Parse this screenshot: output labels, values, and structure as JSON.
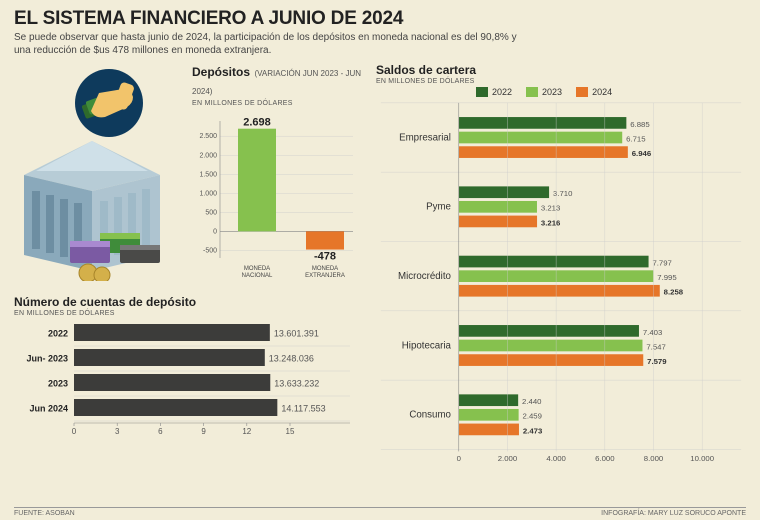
{
  "title": "EL SISTEMA FINANCIERO A JUNIO DE 2024",
  "subtitle": "Se puede observar que hasta junio de 2024, la participación de los depósitos en moneda nacional es del 90,8% y una reducción de $us 478 millones en moneda extranjera.",
  "source": "FUENTE: ASOBAN",
  "credit": "INFOGRAFÍA: MARY LUZ SORUCO APONTE",
  "depositos": {
    "title": "Depósitos",
    "title_sub": "(VARIACIÓN JUN 2023 - JUN 2024)",
    "unit": "EN MILLONES DE DÓLARES",
    "y_ticks": [
      -500,
      0,
      500,
      1000,
      1500,
      2000,
      2500
    ],
    "y_min": -700,
    "y_max": 2900,
    "bars": [
      {
        "label_l1": "MONEDA",
        "label_l2": "NACIONAL",
        "value": 2698,
        "display": "2.698",
        "color": "#86c14e"
      },
      {
        "label_l1": "MONEDA",
        "label_l2": "EXTRANJERA",
        "value": -478,
        "display": "-478",
        "color": "#e67629"
      }
    ]
  },
  "cuentas": {
    "title": "Número de cuentas de depósito",
    "unit": "EN MILLONES DE DÓLARES",
    "x_max": 15,
    "x_ticks": [
      0,
      3,
      6,
      9,
      12,
      15
    ],
    "bar_color": "#3c3c3a",
    "rows": [
      {
        "label": "2022",
        "value": 13.6,
        "display": "13.601.391"
      },
      {
        "label": "Jun- 2023",
        "value": 13.25,
        "display": "13.248.036"
      },
      {
        "label": "2023",
        "value": 13.63,
        "display": "13.633.232"
      },
      {
        "label": "Jun 2024",
        "value": 14.12,
        "display": "14.117.553"
      }
    ]
  },
  "saldos": {
    "title": "Saldos de cartera",
    "unit": "EN MILLONES DE DÓLARES",
    "x_max": 10000,
    "x_ticks": [
      0,
      2000,
      4000,
      6000,
      8000,
      10000
    ],
    "x_tick_labels": [
      "0",
      "2.000",
      "4.000",
      "6.000",
      "8.000",
      "10.000"
    ],
    "years": [
      {
        "label": "2022",
        "color": "#2f6a2c"
      },
      {
        "label": "2023",
        "color": "#86c14e"
      },
      {
        "label": "2024",
        "color": "#e67629"
      }
    ],
    "categories": [
      {
        "label": "Empresarial",
        "values": [
          6885,
          6715,
          6946
        ],
        "displays": [
          "6.885",
          "6.715",
          "6.946"
        ]
      },
      {
        "label": "Pyme",
        "values": [
          3710,
          3213,
          3216
        ],
        "displays": [
          "3.710",
          "3.213",
          "3.216"
        ]
      },
      {
        "label": "Microcrédito",
        "values": [
          7797,
          7995,
          8258
        ],
        "displays": [
          "7.797",
          "7.995",
          "8.258"
        ]
      },
      {
        "label": "Hipotecaria",
        "values": [
          7403,
          7547,
          7579
        ],
        "displays": [
          "7.403",
          "7.547",
          "7.579"
        ]
      },
      {
        "label": "Consumo",
        "values": [
          2440,
          2459,
          2473
        ],
        "displays": [
          "2.440",
          "2.459",
          "2.473"
        ]
      }
    ]
  },
  "colors": {
    "bg": "#f2edd9",
    "grid": "#cccccc",
    "axis": "#888888",
    "bar_dark": "#3c3c3a"
  }
}
